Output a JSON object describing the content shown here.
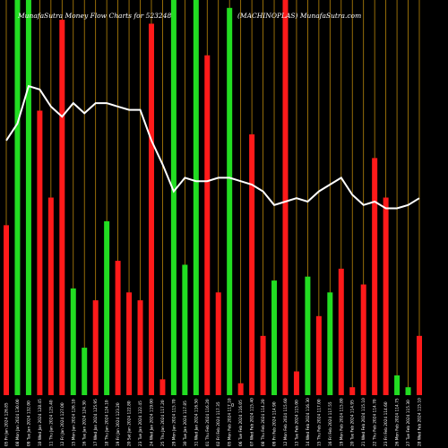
{
  "chart_data": {
    "type": "bar",
    "title_left": "MunafaSutra  Money Flow  Charts for 523248",
    "title_right": "(MACHINOPLAS) MunafaSutra.com",
    "mid_label": "0",
    "ylim": [
      0,
      1
    ],
    "line_ylim": [
      0,
      1
    ],
    "bar_colors": {
      "up": "#22dd22",
      "down": "#ff1a1a"
    },
    "grid_color": "#b8860b",
    "line_color": "#ffffff",
    "categories": [
      "05 Fri Jan 2024 126.85",
      "08 Mon Jan 2024 130.00",
      "09 Tue Jan 2024 132.00",
      "10 Wed Jan 2024 128.45",
      "11 Thu Jan 2024 125.40",
      "12 Fri Jan 2024 127.00",
      "15 Mon Jan 2024 126.10",
      "16 Tue Jan 2024 124.30",
      "17 Wed Jan 2024 125.95",
      "18 Thu Jan 2024 124.10",
      "19 Fri Jan 2024 123.20",
      "20 Sat Jan 2024 122.80",
      "23 Tue Jan 2024 122.45",
      "24 Wed Jan 2024 119.00",
      "25 Thu Jan 2024 117.20",
      "29 Mon Jan 2024 115.70",
      "30 Tue Jan 2024 117.85",
      "31 Wed Jan 2024 116.50",
      "01 Thu Feb 2024 116.20",
      "02 Fri Feb 2024 117.35",
      "05 Mon Feb 2024 117.10",
      "06 Tue Feb 2024 116.05",
      "07 Wed Feb 2024 115.40",
      "08 Thu Feb 2024 114.20",
      "09 Fri Feb 2024 114.90",
      "12 Mon Feb 2024 115.60",
      "13 Tue Feb 2024 115.00",
      "14 Wed Feb 2024 116.30",
      "15 Thu Feb 2024 117.00",
      "16 Fri Feb 2024 117.55",
      "19 Mon Feb 2024 115.80",
      "20 Tue Feb 2024 114.95",
      "21 Wed Feb 2024 115.10",
      "22 Thu Feb 2024 114.70",
      "23 Fri Feb 2024 114.60",
      "26 Mon Feb 2024 114.75",
      "27 Tue Feb 2024 115.30",
      "28 Wed Feb 2024 115.10"
    ],
    "values": [
      0.43,
      1.0,
      1.0,
      0.72,
      0.5,
      0.95,
      0.27,
      0.12,
      0.24,
      0.44,
      0.34,
      0.26,
      0.24,
      0.94,
      0.04,
      1.0,
      0.33,
      1.0,
      0.86,
      0.26,
      0.98,
      0.03,
      0.66,
      0.15,
      0.29,
      1.0,
      0.06,
      0.3,
      0.2,
      0.26,
      0.32,
      0.02,
      0.28,
      0.6,
      0.5,
      0.05,
      0.02,
      0.15
    ],
    "directions": [
      "down",
      "up",
      "up",
      "down",
      "down",
      "down",
      "up",
      "up",
      "down",
      "up",
      "down",
      "down",
      "down",
      "down",
      "down",
      "up",
      "up",
      "up",
      "down",
      "down",
      "up",
      "down",
      "down",
      "down",
      "up",
      "down",
      "down",
      "up",
      "down",
      "up",
      "down",
      "down",
      "down",
      "down",
      "down",
      "up",
      "up",
      "down"
    ],
    "line_values": [
      0.75,
      0.8,
      0.91,
      0.9,
      0.85,
      0.82,
      0.86,
      0.83,
      0.86,
      0.86,
      0.85,
      0.84,
      0.84,
      0.75,
      0.68,
      0.6,
      0.64,
      0.63,
      0.63,
      0.64,
      0.64,
      0.63,
      0.62,
      0.6,
      0.56,
      0.57,
      0.58,
      0.57,
      0.6,
      0.62,
      0.64,
      0.59,
      0.56,
      0.57,
      0.55,
      0.55,
      0.56,
      0.58
    ]
  }
}
